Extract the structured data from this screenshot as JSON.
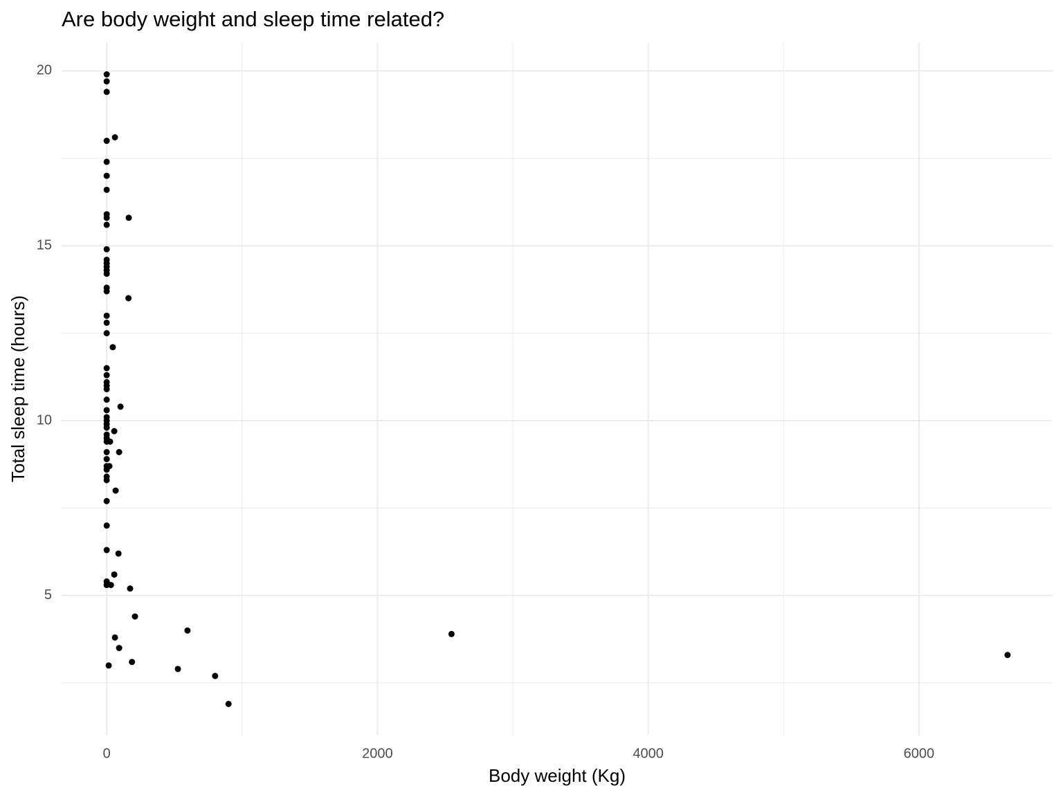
{
  "chart_data": {
    "type": "scatter",
    "title": "Are body weight and sleep time related?",
    "x_label": "Body weight (Kg)",
    "y_label": "Total sleep time (hours)",
    "color": "#000000",
    "grid": true,
    "xlim": [
      -333,
      6987
    ],
    "ylim": [
      1.0,
      20.8
    ],
    "xticks": [
      0,
      2000,
      4000,
      6000
    ],
    "yticks": [
      5,
      10,
      15,
      20
    ],
    "x_minor_ticks": [
      1000,
      3000,
      5000
    ],
    "y_minor_ticks": [
      2.5,
      7.5,
      12.5,
      17.5
    ],
    "x": [
      0,
      0,
      0,
      0,
      61,
      0,
      0,
      0,
      0,
      0,
      0,
      163,
      0,
      0,
      0,
      0,
      0,
      0,
      0,
      0,
      161,
      0,
      0,
      0,
      45,
      0,
      0,
      0,
      0,
      0,
      0,
      102,
      0,
      0,
      0,
      0,
      0,
      0,
      0,
      0,
      25,
      56,
      0,
      92,
      0,
      0,
      20,
      0,
      0,
      0,
      66,
      0,
      0,
      0,
      87,
      56,
      0,
      0,
      31,
      173,
      209,
      597,
      61,
      2547,
      92,
      187,
      15,
      526,
      801,
      900,
      6654
    ],
    "values": [
      19.9,
      19.7,
      19.4,
      18.0,
      18.1,
      17.4,
      17.0,
      16.6,
      15.9,
      15.8,
      15.6,
      15.8,
      14.9,
      14.6,
      14.5,
      14.4,
      14.3,
      14.2,
      13.8,
      13.7,
      13.5,
      13.0,
      12.8,
      12.5,
      12.1,
      11.5,
      11.3,
      11.1,
      11.0,
      10.9,
      10.6,
      10.4,
      10.3,
      10.1,
      10.0,
      9.9,
      9.8,
      9.6,
      9.5,
      9.4,
      9.4,
      9.7,
      9.1,
      9.1,
      8.9,
      8.7,
      8.7,
      8.6,
      8.4,
      8.3,
      8.0,
      7.7,
      7.0,
      6.3,
      6.2,
      5.6,
      5.4,
      5.3,
      5.3,
      5.2,
      4.4,
      4.0,
      3.8,
      3.9,
      3.5,
      3.1,
      3.0,
      2.9,
      2.7,
      1.9,
      3.3
    ]
  }
}
